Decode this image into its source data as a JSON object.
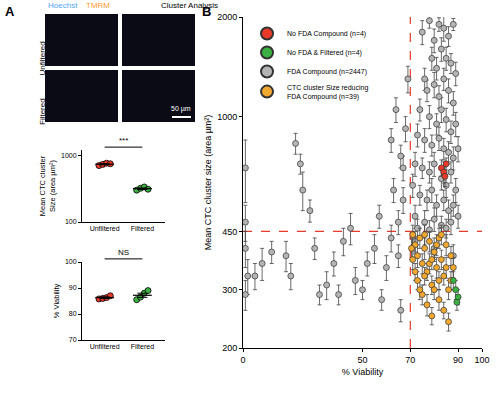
{
  "panel_labels": [
    "A",
    "B"
  ],
  "image_panel": {
    "columns": [
      [
        {
          "text": "Hoechst",
          "color": "#4da6ff"
        },
        {
          "text": "TMRM",
          "color": "#ff9933"
        }
      ],
      [
        {
          "text": "Cluster Analysis",
          "color": "#000000"
        }
      ]
    ],
    "rows": [
      "Unfiltered",
      "Filtered"
    ],
    "scale_bar": "50 µm"
  },
  "chart_data": [
    {
      "type": "dot",
      "categories": [
        "Unfiltered",
        "Filtered"
      ],
      "values": [
        [
          700,
          730,
          760,
          745
        ],
        [
          300,
          320,
          335,
          310
        ]
      ],
      "colors": [
        "#e8392a",
        "#3cb043"
      ],
      "mean": [
        734,
        316
      ],
      "error": [
        13,
        8
      ],
      "ylabel": "Mean CTC cluster Size (area µm²)",
      "log": "y",
      "ylim": [
        100,
        1200
      ],
      "yticks": [
        100,
        1000
      ],
      "grid": false,
      "comparison": "***"
    },
    {
      "type": "dot",
      "categories": [
        "Unfiltered",
        "Filtered"
      ],
      "values": [
        [
          85.8,
          86,
          86.3,
          87
        ],
        [
          85.5,
          86.5,
          88,
          89
        ]
      ],
      "colors": [
        "#e8392a",
        "#3cb043"
      ],
      "mean": [
        86.3,
        87.2
      ],
      "error": [
        0.3,
        0.8
      ],
      "ylabel": "% Viability",
      "ylim": [
        70,
        100
      ],
      "yticks": [
        70,
        80,
        90,
        100
      ],
      "grid": false,
      "comparison": "NS"
    },
    {
      "type": "scatter",
      "xlabel": "% Viability",
      "ylabel": "Mean CTC cluster size (area µm²)",
      "log": "y",
      "xlim": [
        0,
        100
      ],
      "xticks": [
        0,
        50,
        70,
        90,
        100
      ],
      "ylim": [
        200,
        2000
      ],
      "yticks": [
        200,
        300,
        450,
        1000,
        2000
      ],
      "grid": false,
      "legend": "upper left",
      "ref_lines": [
        {
          "axis": "x",
          "value": 70,
          "color": "#e8392a",
          "line_style": "dash"
        },
        {
          "axis": "y",
          "value": 450,
          "color": "#e8392a",
          "line_style": "dash"
        }
      ],
      "series": [
        {
          "name": "No FDA Compound (n=4)",
          "color": "#e8392a",
          "x": [
            83,
            84,
            85,
            84.5
          ],
          "y": [
            700,
            680,
            720,
            660
          ],
          "error": [
            40,
            50,
            30,
            45
          ]
        },
        {
          "name": "No FDA & Filtered (n=4)",
          "color": "#3cb043",
          "x": [
            88,
            89,
            90,
            89.5
          ],
          "y": [
            320,
            300,
            285,
            275
          ],
          "error": [
            20,
            20,
            15,
            15
          ]
        },
        {
          "name": "FDA Compound (n=2447)",
          "color": "#b4b4b4",
          "x": [
            1,
            1,
            1,
            2,
            1,
            5,
            8,
            12,
            18,
            22,
            24,
            25,
            20,
            28,
            30,
            32,
            35,
            38,
            40,
            42,
            45,
            47,
            50,
            52,
            55,
            57,
            58,
            60,
            62,
            63,
            65,
            66,
            67,
            62,
            64,
            66,
            68,
            69,
            67,
            65,
            75,
            78,
            80,
            82,
            84,
            86,
            88,
            79,
            81,
            83,
            85,
            87,
            89,
            76,
            77,
            80,
            82,
            84,
            86,
            88,
            74,
            78,
            81,
            83,
            85,
            87,
            89,
            73,
            76,
            79,
            82,
            84,
            86,
            88,
            90,
            72,
            75,
            78,
            80,
            83,
            85,
            87,
            89,
            71,
            74,
            77,
            79,
            81,
            84,
            86,
            88,
            72,
            76,
            80,
            83,
            87,
            90,
            73,
            78,
            85,
            72,
            80,
            88
          ],
          "y": [
            700,
            480,
            400,
            330,
            290,
            330,
            360,
            390,
            380,
            830,
            720,
            600,
            330,
            520,
            400,
            290,
            310,
            360,
            290,
            420,
            460,
            320,
            300,
            360,
            400,
            500,
            280,
            350,
            430,
            600,
            380,
            260,
            700,
            850,
            1050,
            760,
            920,
            1300,
            560,
            480,
            1800,
            1950,
            1700,
            1900,
            1850,
            1750,
            1900,
            1500,
            1400,
            1600,
            1500,
            1450,
            1350,
            1300,
            1200,
            1250,
            1150,
            1300,
            1200,
            1100,
            1050,
            1000,
            950,
            1050,
            980,
            900,
            950,
            880,
            850,
            820,
            860,
            800,
            780,
            750,
            800,
            720,
            700,
            680,
            720,
            650,
            620,
            680,
            600,
            620,
            580,
            560,
            600,
            540,
            560,
            520,
            540,
            500,
            480,
            490,
            470,
            480,
            500,
            460,
            455,
            460,
            420,
            400,
            380
          ],
          "error": [
            150,
            60,
            50,
            40,
            30,
            30,
            40,
            30,
            40,
            60,
            50,
            80,
            30,
            40,
            30,
            20,
            30,
            30,
            20,
            40,
            50,
            30,
            20,
            30,
            40,
            40,
            20,
            30,
            40,
            50,
            30,
            20,
            60,
            70,
            90,
            60,
            80,
            120,
            50,
            40,
            150,
            100,
            140,
            90,
            160,
            120,
            80,
            120,
            110,
            130,
            120,
            100,
            110,
            100,
            90,
            110,
            90,
            100,
            100,
            90,
            80,
            80,
            70,
            90,
            80,
            70,
            80,
            70,
            70,
            60,
            70,
            60,
            60,
            60,
            70,
            60,
            50,
            50,
            60,
            50,
            50,
            50,
            50,
            50,
            40,
            40,
            50,
            40,
            40,
            40,
            40,
            40,
            40,
            40,
            30,
            40,
            40,
            30,
            30,
            30,
            30,
            30,
            30
          ]
        },
        {
          "name": "CTC cluster Size reducing FDA Compound (n=39)",
          "color": "#f0a830",
          "x": [
            71,
            72,
            73,
            74,
            75,
            76,
            77,
            78,
            79,
            80,
            81,
            82,
            83,
            84,
            85,
            86,
            87,
            88,
            71,
            73,
            75,
            77,
            79,
            80,
            82,
            84,
            86,
            72,
            74,
            76,
            78,
            81,
            83,
            85,
            87,
            70.5,
            76,
            82,
            79
          ],
          "y": [
            440,
            410,
            380,
            430,
            360,
            400,
            340,
            420,
            310,
            390,
            350,
            430,
            370,
            330,
            410,
            300,
            380,
            350,
            370,
            320,
            290,
            270,
            250,
            300,
            280,
            260,
            240,
            340,
            300,
            330,
            360,
            410,
            440,
            350,
            320,
            400,
            440,
            320,
            370
          ],
          "error": [
            30,
            25,
            30,
            30,
            25,
            30,
            20,
            30,
            20,
            25,
            25,
            30,
            25,
            20,
            30,
            20,
            25,
            25,
            25,
            20,
            20,
            20,
            15,
            20,
            20,
            15,
            15,
            20,
            20,
            20,
            25,
            30,
            30,
            25,
            20,
            30,
            30,
            20,
            25
          ]
        }
      ]
    }
  ]
}
